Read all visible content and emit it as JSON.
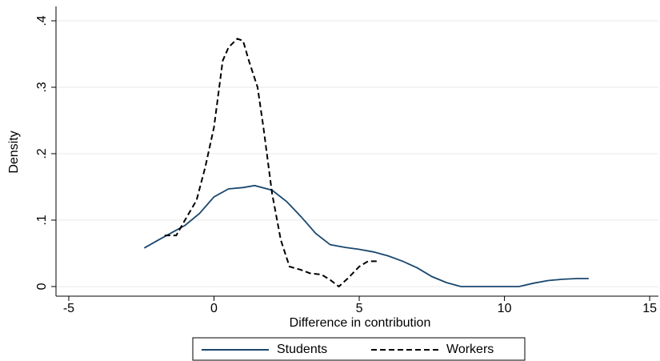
{
  "chart_data": {
    "type": "line",
    "x_label": "Difference in contribution",
    "y_label": "Density",
    "xlim": [
      -5.44,
      15.3
    ],
    "ylim": [
      -0.0145,
      0.4217
    ],
    "xticks": [
      -5,
      0,
      5,
      10,
      15
    ],
    "yticks": [
      0,
      {
        "value": 0.1,
        "label": ".1"
      },
      {
        "value": 0.2,
        "label": ".2"
      },
      {
        "value": 0.3,
        "label": ".3"
      },
      {
        "value": 0.4,
        "label": ".4"
      }
    ],
    "grid": true,
    "legend": "bottom",
    "series": [
      {
        "name": "Students",
        "color": "#1a476f",
        "dash": false,
        "x": [
          -2.4,
          -2,
          -1.5,
          -1,
          -0.5,
          0,
          0.5,
          1,
          1.4,
          2,
          2.5,
          3,
          3.5,
          4,
          4.5,
          5,
          5.5,
          6,
          6.5,
          7,
          7.5,
          8,
          8.5,
          9,
          9.5,
          10,
          10.5,
          11,
          11.5,
          12,
          12.5,
          12.9
        ],
        "values": [
          0.058,
          0.068,
          0.08,
          0.092,
          0.11,
          0.135,
          0.147,
          0.149,
          0.152,
          0.145,
          0.128,
          0.105,
          0.08,
          0.063,
          0.059,
          0.056,
          0.052,
          0.046,
          0.038,
          0.028,
          0.015,
          0.006,
          0,
          0,
          0,
          0,
          0,
          0.005,
          0.009,
          0.011,
          0.012,
          0.012
        ]
      },
      {
        "name": "Workers",
        "color": "#000000",
        "dash": true,
        "x": [
          -1.7,
          -1.3,
          -1,
          -0.6,
          -0.3,
          0,
          0.3,
          0.5,
          0.8,
          1,
          1.2,
          1.5,
          1.7,
          2,
          2.3,
          2.6,
          3,
          3.3,
          3.7,
          4,
          4.3,
          4.6,
          5,
          5.3,
          5.6
        ],
        "values": [
          0.077,
          0.077,
          0.1,
          0.13,
          0.18,
          0.24,
          0.34,
          0.36,
          0.373,
          0.37,
          0.34,
          0.3,
          0.24,
          0.14,
          0.07,
          0.03,
          0.025,
          0.02,
          0.018,
          0.01,
          0,
          0.012,
          0.03,
          0.038,
          0.038
        ]
      }
    ]
  }
}
